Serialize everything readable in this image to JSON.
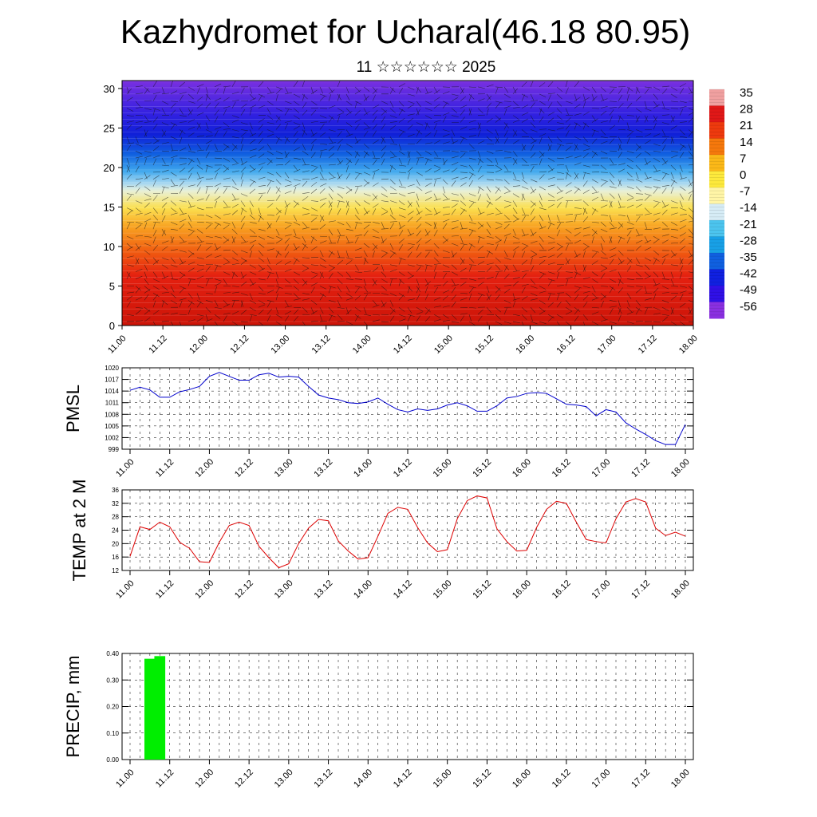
{
  "header": {
    "title": "Kazhydromet for Ucharal(46.18 80.95)",
    "subtitle": "11 ☆☆☆☆☆☆ 2025"
  },
  "chart_data": [
    {
      "type": "heatmap",
      "name": "vertical-cross-section",
      "x_ticks": [
        "11.00",
        "11.12",
        "12.00",
        "12.12",
        "13.00",
        "13.12",
        "14.00",
        "14.12",
        "15.00",
        "15.12",
        "16.00",
        "16.12",
        "17.00",
        "17.12",
        "18.00"
      ],
      "y_ticks": [
        0,
        5,
        10,
        15,
        20,
        25,
        30
      ],
      "ylim": [
        0,
        31
      ],
      "colorbar_labels": [
        "35",
        "28",
        "21",
        "14",
        "7",
        "0",
        "-7",
        "-14",
        "-21",
        "-28",
        "-35",
        "-42",
        "-49",
        "-56"
      ],
      "colorbar_colors": [
        "#f0a0a0",
        "#e01818",
        "#ee3a0e",
        "#f5780c",
        "#fbb818",
        "#fde93c",
        "#fff5a6",
        "#d6ecf6",
        "#4cc4ee",
        "#18a0e6",
        "#1060e0",
        "#1020e0",
        "#3010e6",
        "#8a30e0"
      ],
      "description_bands": [
        {
          "from": 0,
          "to": 8,
          "color": "#e02010"
        },
        {
          "from": 8,
          "to": 12,
          "color": "#f06010"
        },
        {
          "from": 12,
          "to": 16,
          "color": "#f8c030"
        },
        {
          "from": 16,
          "to": 19,
          "color": "#a8d8f0"
        },
        {
          "from": 19,
          "to": 27,
          "color": "#1030e0"
        },
        {
          "from": 27,
          "to": 31,
          "color": "#7030e0"
        }
      ]
    },
    {
      "type": "line",
      "name": "pmsl",
      "ylabel": "PMSL",
      "yticks": [
        999,
        1002,
        1005,
        1008,
        1011,
        1014,
        1017,
        1020
      ],
      "ylim": [
        999,
        1020
      ],
      "x_ticks": [
        "11.00",
        "11.12",
        "12.00",
        "12.12",
        "13.00",
        "13.12",
        "14.00",
        "14.12",
        "15.00",
        "15.12",
        "16.00",
        "16.12",
        "17.00",
        "17.12",
        "18.00"
      ],
      "color": "#0000cc",
      "values": [
        1014.2,
        1015.0,
        1014.3,
        1012.4,
        1012.4,
        1013.8,
        1014.4,
        1015.2,
        1017.8,
        1018.8,
        1017.8,
        1016.8,
        1016.8,
        1018.2,
        1018.6,
        1017.6,
        1017.8,
        1017.6,
        1015.2,
        1013.0,
        1012.2,
        1011.8,
        1011.0,
        1010.8,
        1011.2,
        1012.2,
        1010.6,
        1009.2,
        1008.6,
        1009.4,
        1009.0,
        1009.4,
        1010.4,
        1011.0,
        1010.2,
        1008.8,
        1008.8,
        1010.2,
        1012.2,
        1012.6,
        1013.4,
        1013.6,
        1013.4,
        1012.0,
        1010.6,
        1010.4,
        1010.0,
        1007.6,
        1009.2,
        1008.6,
        1005.8,
        1004.2,
        1002.8,
        1001.2,
        1000.2,
        1000.2,
        1005.4
      ]
    },
    {
      "type": "line",
      "name": "temp-2m",
      "ylabel": "TEMP at 2 M",
      "yticks": [
        12,
        16,
        20,
        24,
        28,
        32,
        36
      ],
      "ylim": [
        12,
        36
      ],
      "x_ticks": [
        "11.00",
        "11.12",
        "12.00",
        "12.12",
        "13.00",
        "13.12",
        "14.00",
        "14.12",
        "15.00",
        "15.12",
        "16.00",
        "16.12",
        "17.00",
        "17.12",
        "18.00"
      ],
      "color": "#dd0000",
      "values": [
        16.2,
        25.0,
        24.2,
        26.4,
        25.0,
        20.4,
        18.6,
        14.6,
        14.4,
        20.4,
        25.4,
        26.4,
        25.4,
        19.2,
        15.8,
        12.8,
        14.0,
        20.0,
        24.6,
        27.2,
        26.8,
        20.8,
        17.8,
        15.4,
        15.8,
        22.2,
        29.0,
        30.8,
        30.2,
        24.8,
        20.2,
        17.6,
        18.2,
        27.4,
        32.8,
        34.2,
        33.6,
        24.4,
        20.6,
        17.8,
        18.0,
        24.8,
        30.2,
        32.6,
        32.0,
        26.4,
        21.2,
        20.6,
        20.2,
        27.4,
        32.4,
        33.4,
        32.4,
        24.6,
        22.4,
        23.4,
        22.2
      ]
    },
    {
      "type": "bar",
      "name": "precip",
      "ylabel": "PRECIP, mm",
      "yticks": [
        "0.00",
        "0.10",
        "0.20",
        "0.30",
        "0.40"
      ],
      "ylim": [
        0,
        0.4
      ],
      "x_ticks": [
        "11.00",
        "11.12",
        "12.00",
        "12.12",
        "13.00",
        "13.12",
        "14.00",
        "14.12",
        "15.00",
        "15.12",
        "16.00",
        "16.12",
        "17.00",
        "17.12",
        "18.00"
      ],
      "color": "#00ee00",
      "bars": [
        {
          "x_step": 2,
          "value": 0.38
        },
        {
          "x_step": 3,
          "value": 0.39
        }
      ]
    }
  ]
}
